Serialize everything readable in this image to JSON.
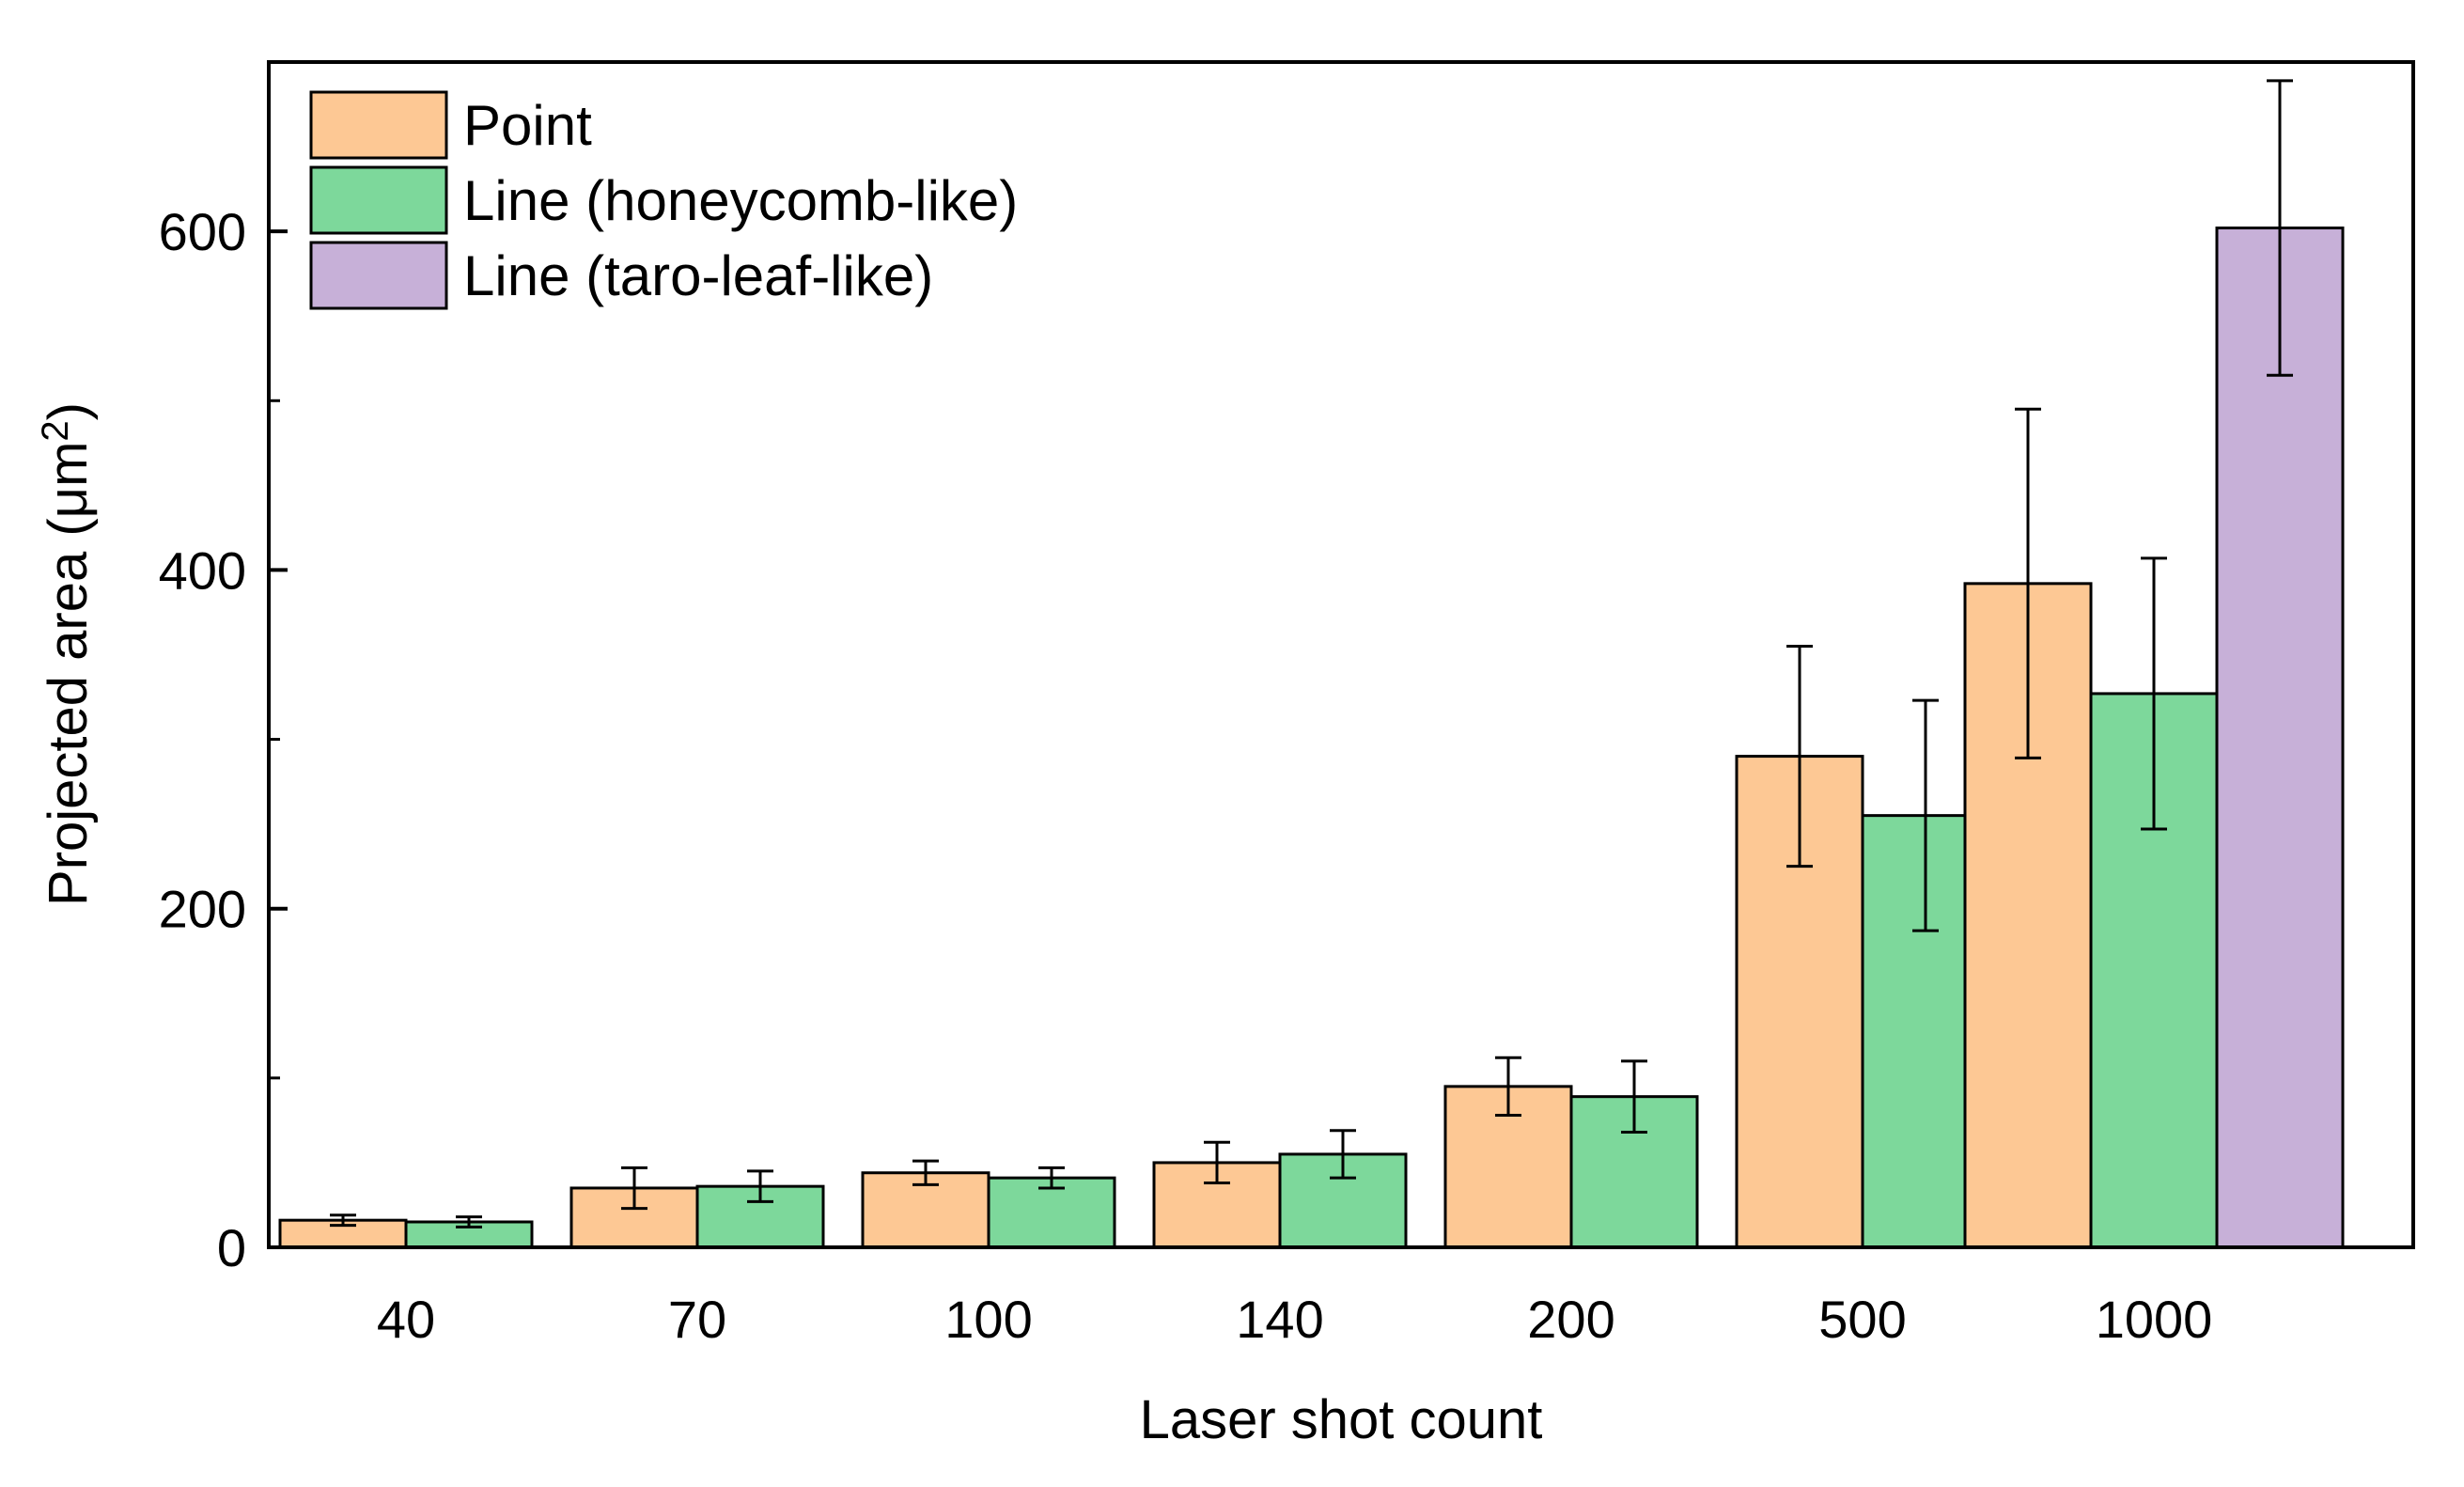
{
  "chart_data": {
    "type": "bar",
    "xlabel": "Laser shot count",
    "ylabel": "Projected area (μm",
    "ylabel_superscript": "2",
    "ylabel_close": ")",
    "ylim": [
      0,
      700
    ],
    "yticks": [
      0,
      200,
      400,
      600
    ],
    "grid": false,
    "legend_position": "top-left",
    "categories": [
      "40",
      "70",
      "100",
      "140",
      "200",
      "500",
      "1000"
    ],
    "series": [
      {
        "name": "Point",
        "color": "#fdc894",
        "values": [
          16,
          35,
          44,
          50,
          95,
          290,
          392
        ],
        "errors": [
          3,
          12,
          7,
          12,
          17,
          65,
          103
        ]
      },
      {
        "name": "Line (honeycomb-like)",
        "color": "#7dd89b",
        "values": [
          15,
          36,
          41,
          55,
          89,
          255,
          327
        ],
        "errors": [
          3,
          9,
          6,
          14,
          21,
          68,
          80
        ]
      },
      {
        "name": "Line (taro-leaf-like)",
        "color": "#c7b0d8",
        "values": [
          null,
          null,
          null,
          null,
          null,
          null,
          602
        ],
        "errors": [
          null,
          null,
          null,
          null,
          null,
          null,
          87
        ]
      }
    ]
  }
}
